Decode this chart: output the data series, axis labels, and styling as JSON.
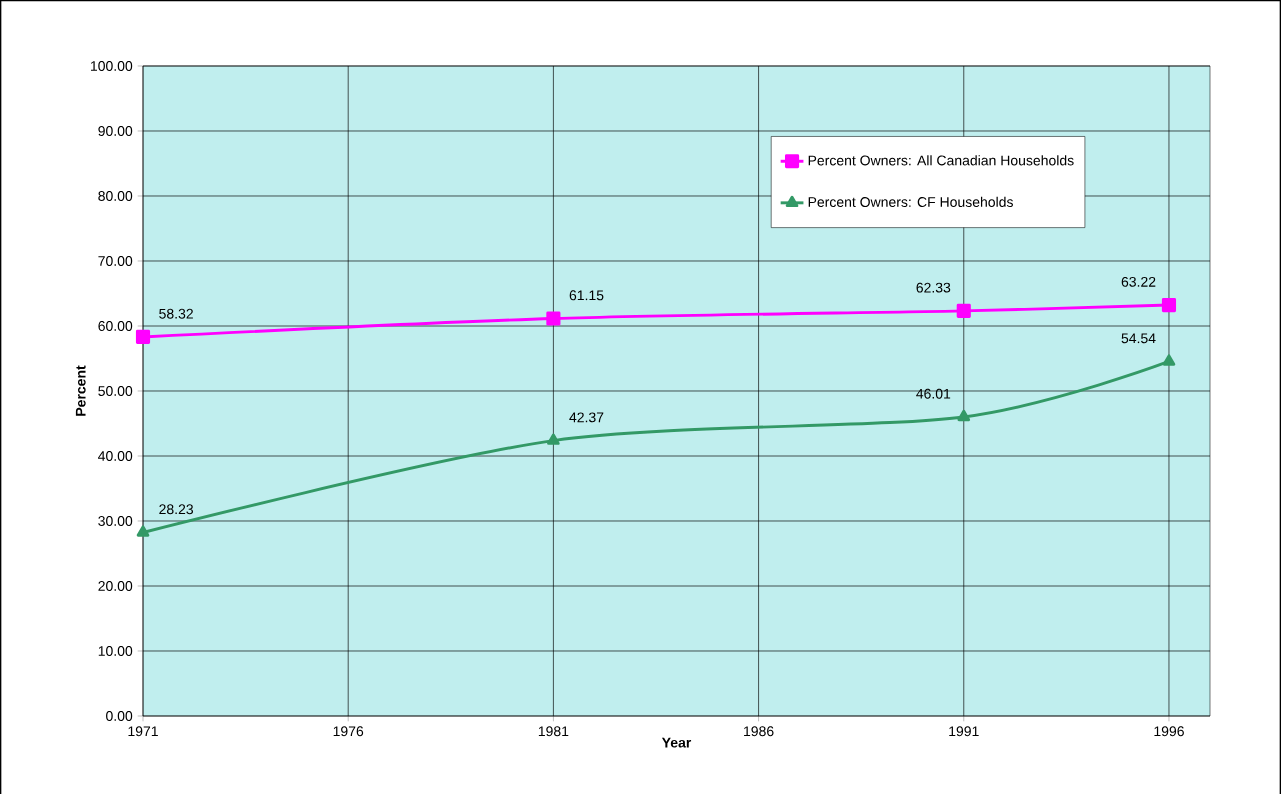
{
  "chart_data": {
    "type": "line",
    "xlabel": "Year",
    "ylabel": "Percent",
    "x": [
      1971,
      1981,
      1991,
      1996
    ],
    "series": [
      {
        "name": "Percent Owners: All Canadian Households",
        "color": "#ff00ff",
        "marker": "square",
        "values": [
          58.32,
          61.15,
          62.33,
          63.22
        ]
      },
      {
        "name": "Percent Owners: CF Households",
        "color": "#339966",
        "marker": "triangle",
        "values": [
          28.23,
          42.37,
          46.01,
          54.54
        ]
      }
    ],
    "xlim": [
      1971,
      1997
    ],
    "xticks": [
      1971,
      1976,
      1981,
      1986,
      1991,
      1996
    ],
    "ylim": [
      0,
      100
    ],
    "yticks": [
      {
        "value": 0,
        "label": "0.00"
      },
      {
        "value": 10,
        "label": "10.00"
      },
      {
        "value": 20,
        "label": "20.00"
      },
      {
        "value": 30,
        "label": "30.00"
      },
      {
        "value": 40,
        "label": "40.00"
      },
      {
        "value": 50,
        "label": "50.00"
      },
      {
        "value": 60,
        "label": "60.00"
      },
      {
        "value": 70,
        "label": "70.00"
      },
      {
        "value": 80,
        "label": "80.00"
      },
      {
        "value": 90,
        "label": "90.00"
      },
      {
        "value": 100,
        "label": "100.00"
      }
    ],
    "grid": true,
    "legend": "top right",
    "data_labels": true,
    "line_style": "solid"
  }
}
